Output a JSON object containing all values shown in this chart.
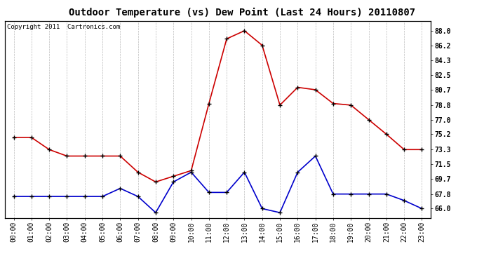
{
  "title": "Outdoor Temperature (vs) Dew Point (Last 24 Hours) 20110807",
  "copyright": "Copyright 2011  Cartronics.com",
  "hours": [
    "00:00",
    "01:00",
    "02:00",
    "03:00",
    "04:00",
    "05:00",
    "06:00",
    "07:00",
    "08:00",
    "09:00",
    "10:00",
    "11:00",
    "12:00",
    "13:00",
    "14:00",
    "15:00",
    "16:00",
    "17:00",
    "18:00",
    "19:00",
    "20:00",
    "21:00",
    "22:00",
    "23:00"
  ],
  "temp": [
    74.8,
    74.8,
    73.3,
    72.5,
    72.5,
    72.5,
    72.5,
    70.5,
    69.3,
    70.0,
    70.7,
    79.0,
    87.0,
    88.0,
    86.2,
    78.8,
    81.0,
    80.7,
    79.0,
    78.8,
    77.0,
    75.2,
    73.3,
    73.3
  ],
  "dew": [
    67.5,
    67.5,
    67.5,
    67.5,
    67.5,
    67.5,
    68.5,
    67.5,
    65.5,
    69.3,
    70.5,
    68.0,
    68.0,
    70.5,
    66.0,
    65.5,
    70.5,
    72.5,
    67.8,
    67.8,
    67.8,
    67.8,
    67.0,
    66.0
  ],
  "temp_color": "#cc0000",
  "dew_color": "#0000cc",
  "bg_color": "#ffffff",
  "plot_bg": "#ffffff",
  "grid_color": "#aaaaaa",
  "ylim_min": 64.8,
  "ylim_max": 89.2,
  "yticks": [
    66.0,
    67.8,
    69.7,
    71.5,
    73.3,
    75.2,
    77.0,
    78.8,
    80.7,
    82.5,
    84.3,
    86.2,
    88.0
  ],
  "title_fontsize": 10,
  "copyright_fontsize": 6.5,
  "tick_fontsize": 7
}
